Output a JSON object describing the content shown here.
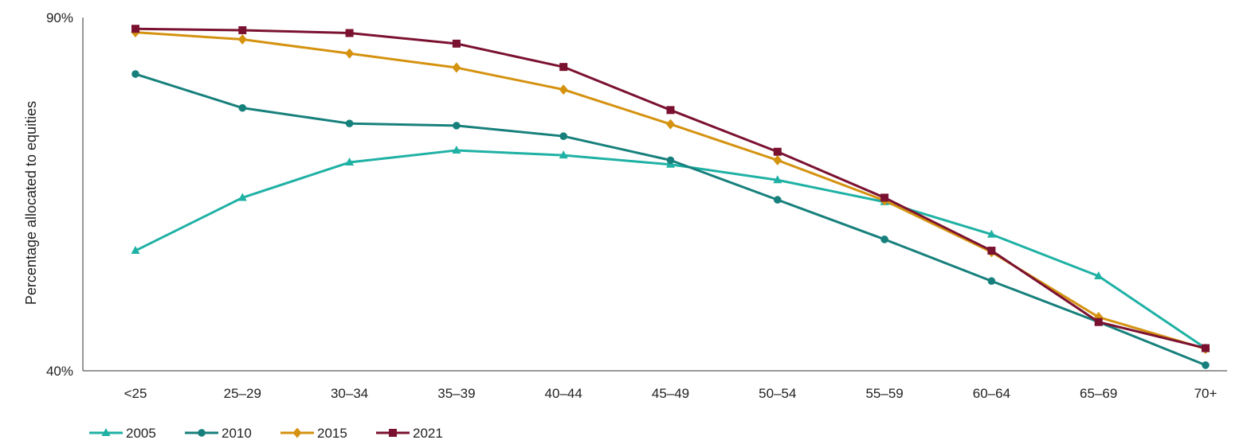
{
  "chart_data": {
    "type": "line",
    "title": "",
    "xlabel": "",
    "ylabel": "Percentage allocated to equities",
    "ylim": [
      40,
      90
    ],
    "y_ticks": [
      "90%",
      "40%"
    ],
    "categories": [
      "<25",
      "25–29",
      "30–34",
      "35–39",
      "40–44",
      "45–49",
      "50–54",
      "55–59",
      "60–64",
      "65–69",
      "70+"
    ],
    "series": [
      {
        "name": "2005",
        "color": "#1fb1a4",
        "marker": "triangle",
        "values": [
          57.0,
          64.5,
          69.5,
          71.2,
          70.5,
          69.2,
          67.0,
          63.9,
          59.3,
          53.4,
          43.2
        ]
      },
      {
        "name": "2010",
        "color": "#17807c",
        "marker": "circle",
        "values": [
          82.0,
          77.2,
          75.0,
          74.7,
          73.2,
          69.8,
          64.2,
          58.6,
          52.7,
          46.9,
          40.8
        ]
      },
      {
        "name": "2015",
        "color": "#d4920f",
        "marker": "diamond",
        "values": [
          87.9,
          86.9,
          84.9,
          82.9,
          79.8,
          74.9,
          69.8,
          64.1,
          56.8,
          47.6,
          43.1
        ]
      },
      {
        "name": "2021",
        "color": "#7b1131",
        "marker": "square",
        "values": [
          88.4,
          88.2,
          87.8,
          86.3,
          83.0,
          76.9,
          71.0,
          64.5,
          57.0,
          46.9,
          43.2
        ]
      }
    ],
    "grid": false,
    "legend_position": "bottom-left"
  }
}
